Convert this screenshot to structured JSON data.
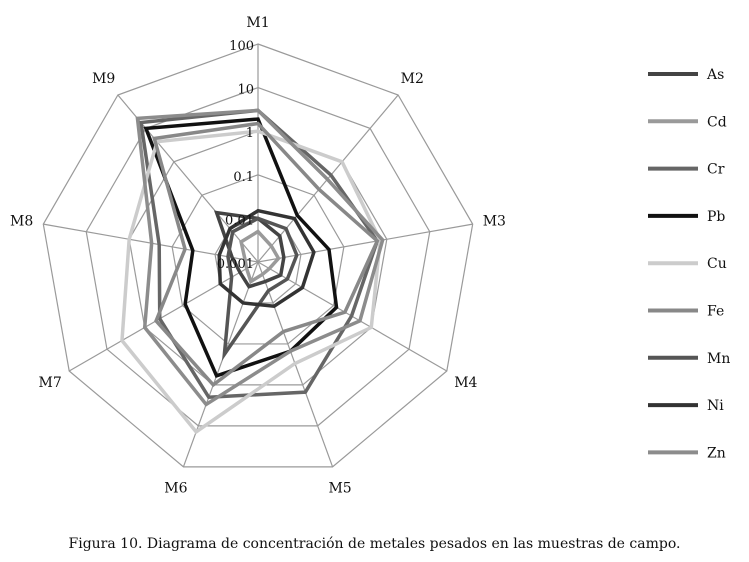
{
  "caption": "Figura 10. Diagrama de concentración de metales pesados en las muestras de campo.",
  "chart_data": {
    "type": "radar",
    "scale": "log",
    "range": [
      0.001,
      100
    ],
    "ticks": [
      "0.001",
      "0.01",
      "0.1",
      "1",
      "10",
      "100"
    ],
    "tick_values": [
      0.001,
      0.01,
      0.1,
      1,
      10,
      100
    ],
    "categories": [
      "M1",
      "M2",
      "M3",
      "M4",
      "M5",
      "M6",
      "M7",
      "M8",
      "M9"
    ],
    "legend_position": "right",
    "series": [
      {
        "name": "As",
        "color": "#444444",
        "values": [
          0.01,
          0.006,
          0.004,
          0.004,
          0.003,
          0.004,
          0.003,
          0.004,
          0.03
        ]
      },
      {
        "name": "Cd",
        "color": "#9a9a9a",
        "values": [
          0.005,
          0.003,
          0.003,
          0.002,
          0.002,
          0.003,
          0.002,
          0.002,
          0.004
        ]
      },
      {
        "name": "Cr",
        "color": "#666666",
        "values": [
          3,
          0.4,
          0.6,
          0.3,
          1.5,
          2,
          0.4,
          0.2,
          15
        ]
      },
      {
        "name": "Pb",
        "color": "#111111",
        "values": [
          1.9,
          0.025,
          0.045,
          0.12,
          0.15,
          0.6,
          0.085,
          0.033,
          10
        ]
      },
      {
        "name": "Cu",
        "color": "#cccccc",
        "values": [
          1,
          1,
          0.7,
          1,
          0.3,
          14,
          4,
          1,
          4
        ]
      },
      {
        "name": "Fe",
        "color": "#888888",
        "values": [
          1.5,
          0.15,
          0.6,
          0.2,
          0.05,
          1,
          0.5,
          0.05,
          5
        ]
      },
      {
        "name": "Mn",
        "color": "#555555",
        "values": [
          0.01,
          0.01,
          0.008,
          0.006,
          0.005,
          0.18,
          0.005,
          0.005,
          0.008
        ]
      },
      {
        "name": "Ni",
        "color": "#333333",
        "values": [
          0.015,
          0.02,
          0.02,
          0.015,
          0.012,
          0.01,
          0.01,
          0.008,
          0.01
        ]
      },
      {
        "name": "Zn",
        "color": "#8c8c8c",
        "values": [
          3,
          0.3,
          0.8,
          0.5,
          0.15,
          3,
          1,
          0.3,
          20
        ]
      }
    ]
  }
}
